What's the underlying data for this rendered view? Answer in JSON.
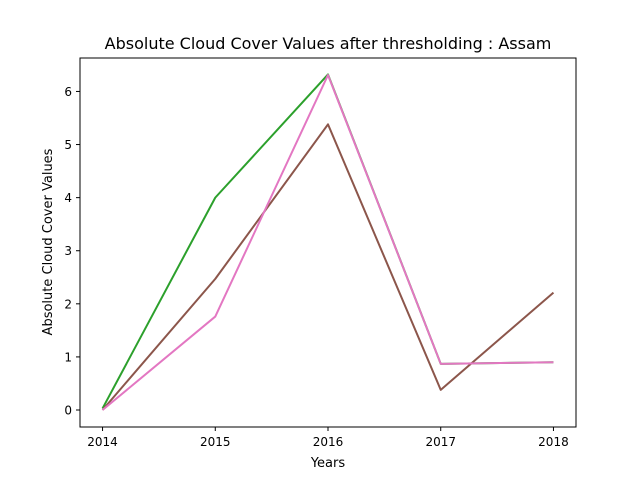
{
  "chart_data": {
    "type": "line",
    "title": "Absolute Cloud Cover Values after thresholding : Assam",
    "xlabel": "Years",
    "ylabel": "Absolute Cloud Cover Values",
    "x": [
      2014,
      2015,
      2016,
      2017,
      2018
    ],
    "x_ticks": [
      "2014",
      "2015",
      "2016",
      "2017",
      "2018"
    ],
    "y_ticks": [
      "0",
      "1",
      "2",
      "3",
      "4",
      "5",
      "6"
    ],
    "xlim": [
      2013.8,
      2018.2
    ],
    "ylim": [
      -0.32,
      6.63
    ],
    "grid": false,
    "series": [
      {
        "name": "series-green",
        "color": "#2ca02c",
        "values": [
          0.03,
          4.0,
          6.32,
          0.87,
          0.9
        ]
      },
      {
        "name": "series-brown",
        "color": "#8c564b",
        "values": [
          0.0,
          2.47,
          5.38,
          0.38,
          2.21
        ]
      },
      {
        "name": "series-pink",
        "color": "#e377c2",
        "values": [
          0.0,
          1.76,
          6.31,
          0.87,
          0.9
        ]
      }
    ]
  }
}
